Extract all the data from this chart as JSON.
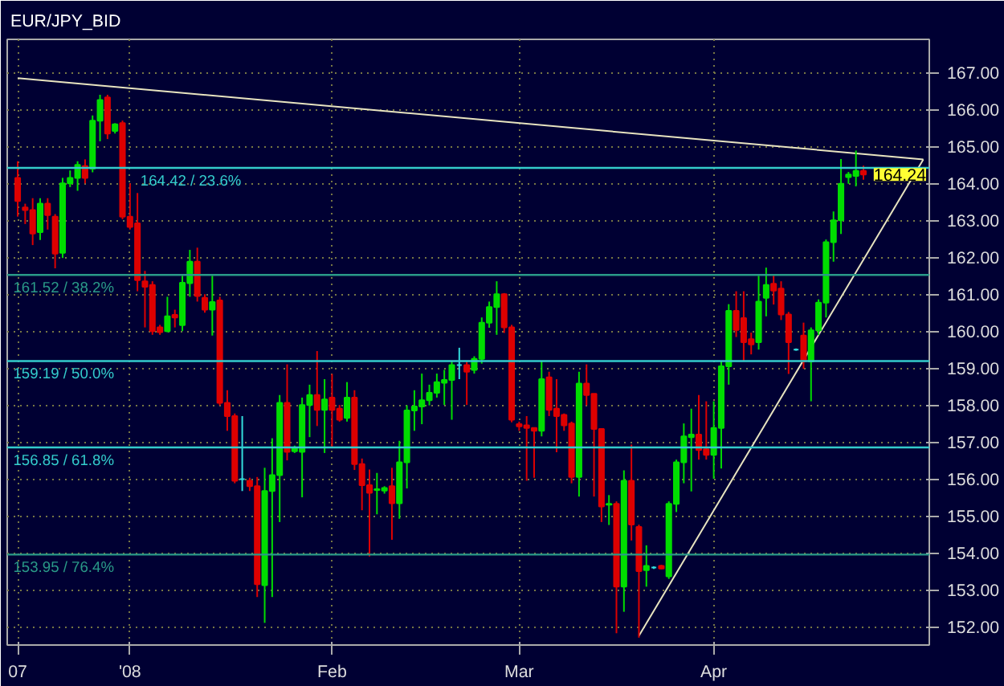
{
  "chart_data": {
    "type": "candlestick",
    "title": "EUR/JPY_BID",
    "categories": [
      "07",
      null,
      null,
      null,
      null,
      null,
      null,
      null,
      null,
      null,
      null,
      null,
      null,
      null,
      null,
      "'08",
      null,
      null,
      null,
      null,
      null,
      null,
      null,
      null,
      null,
      null,
      null,
      null,
      null,
      null,
      null,
      null,
      null,
      null,
      null,
      null,
      null,
      null,
      null,
      null,
      null,
      null,
      "Feb",
      null,
      null,
      null,
      null,
      null,
      null,
      null,
      null,
      null,
      null,
      null,
      null,
      null,
      null,
      null,
      null,
      null,
      null,
      null,
      null,
      null,
      null,
      null,
      null,
      "Mar",
      null,
      null,
      null,
      null,
      null,
      null,
      null,
      null,
      null,
      null,
      null,
      null,
      null,
      null,
      null,
      null,
      null,
      null,
      null,
      null,
      null,
      null,
      null,
      null,
      null,
      "Apr",
      null,
      null,
      null,
      null,
      null,
      null,
      null,
      null,
      null,
      null,
      null,
      null,
      null,
      null,
      null,
      null,
      null,
      null,
      null,
      null,
      null,
      null,
      null,
      null,
      null,
      null,
      null,
      null
    ],
    "ohlc": [
      [
        164.15,
        164.6,
        163.1,
        163.52
      ],
      [
        163.35,
        163.45,
        162.9,
        163.28
      ],
      [
        163.28,
        163.6,
        162.33,
        162.64
      ],
      [
        162.68,
        163.6,
        162.47,
        163.45
      ],
      [
        163.45,
        163.6,
        162.75,
        163.14
      ],
      [
        163.1,
        163.17,
        161.7,
        162.1
      ],
      [
        162.12,
        164.15,
        161.98,
        164.0
      ],
      [
        164.0,
        164.35,
        163.9,
        164.15
      ],
      [
        164.15,
        164.6,
        163.8,
        164.5
      ],
      [
        164.47,
        164.65,
        164.0,
        164.15
      ],
      [
        164.4,
        165.84,
        164.3,
        165.7
      ],
      [
        165.7,
        166.4,
        165.14,
        166.26
      ],
      [
        166.33,
        166.4,
        165.2,
        165.35
      ],
      [
        165.42,
        165.63,
        165.35,
        165.6
      ],
      [
        165.63,
        165.7,
        163.03,
        163.1
      ],
      [
        163.1,
        164.0,
        162.75,
        162.82
      ],
      [
        162.92,
        163.74,
        161.08,
        161.38
      ],
      [
        161.35,
        161.63,
        160.1,
        161.2
      ],
      [
        161.25,
        161.35,
        159.9,
        160.0
      ],
      [
        160.1,
        160.17,
        159.9,
        159.97
      ],
      [
        160.0,
        160.93,
        159.97,
        160.4
      ],
      [
        160.44,
        160.58,
        160.1,
        160.37
      ],
      [
        160.16,
        161.5,
        160.0,
        161.31
      ],
      [
        161.3,
        162.2,
        160.93,
        161.88
      ],
      [
        161.88,
        162.26,
        160.8,
        160.95
      ],
      [
        160.9,
        161.0,
        160.5,
        160.58
      ],
      [
        160.58,
        161.5,
        159.88,
        160.79
      ],
      [
        160.83,
        160.93,
        157.99,
        158.06
      ],
      [
        158.06,
        158.4,
        157.3,
        157.7
      ],
      [
        157.7,
        157.77,
        155.88,
        155.95
      ],
      [
        155.99,
        157.7,
        155.67,
        155.99
      ],
      [
        155.95,
        156.03,
        155.67,
        155.8
      ],
      [
        155.8,
        156.05,
        152.8,
        153.15
      ],
      [
        153.12,
        156.3,
        152.1,
        155.67
      ],
      [
        155.67,
        157.1,
        152.8,
        156.1
      ],
      [
        156.1,
        158.27,
        154.83,
        158.06
      ],
      [
        158.06,
        159.1,
        156.5,
        156.73
      ],
      [
        156.75,
        156.9,
        156.7,
        156.85
      ],
      [
        156.73,
        158.2,
        155.5,
        158.0
      ],
      [
        158.0,
        158.55,
        157.13,
        158.27
      ],
      [
        158.27,
        159.46,
        157.43,
        157.87
      ],
      [
        157.87,
        158.7,
        156.7,
        158.15
      ],
      [
        158.2,
        158.84,
        156.85,
        157.87
      ],
      [
        157.9,
        158.0,
        157.55,
        157.6
      ],
      [
        157.65,
        158.62,
        157.55,
        158.2
      ],
      [
        158.2,
        158.4,
        156.24,
        156.4
      ],
      [
        156.4,
        156.55,
        155.15,
        155.83
      ],
      [
        155.83,
        156.25,
        153.9,
        155.62
      ],
      [
        155.7,
        156.16,
        155.04,
        155.72
      ],
      [
        155.68,
        155.8,
        155.6,
        155.75
      ],
      [
        155.8,
        156.3,
        154.35,
        155.34
      ],
      [
        155.34,
        157.03,
        154.92,
        156.45
      ],
      [
        156.45,
        157.99,
        155.74,
        157.85
      ],
      [
        157.85,
        158.4,
        157.3,
        157.96
      ],
      [
        157.96,
        158.85,
        157.48,
        158.13
      ],
      [
        158.13,
        158.55,
        157.99,
        158.33
      ],
      [
        158.33,
        158.85,
        158.2,
        158.62
      ],
      [
        158.6,
        158.95,
        158.0,
        158.68
      ],
      [
        158.68,
        159.18,
        157.6,
        159.08
      ],
      [
        159.08,
        159.55,
        158.7,
        159.08
      ],
      [
        159.08,
        159.18,
        158.0,
        158.9
      ],
      [
        158.95,
        159.32,
        158.85,
        159.25
      ],
      [
        159.25,
        160.37,
        159.12,
        160.23
      ],
      [
        160.23,
        160.8,
        160.09,
        160.65
      ],
      [
        160.65,
        161.35,
        159.9,
        161.0
      ],
      [
        161.0,
        161.03,
        159.95,
        160.1
      ],
      [
        160.1,
        160.17,
        157.53,
        157.6
      ],
      [
        157.48,
        157.55,
        157.3,
        157.42
      ],
      [
        157.45,
        157.7,
        155.95,
        157.38
      ],
      [
        157.38,
        157.38,
        156.03,
        157.3
      ],
      [
        157.3,
        159.2,
        157.15,
        158.7
      ],
      [
        158.75,
        158.9,
        157.7,
        157.87
      ],
      [
        157.9,
        158.7,
        156.72,
        157.7
      ],
      [
        157.73,
        157.77,
        157.3,
        157.45
      ],
      [
        157.5,
        157.55,
        155.88,
        156.05
      ],
      [
        156.05,
        158.9,
        155.52,
        158.58
      ],
      [
        158.58,
        159.1,
        157.99,
        158.27
      ],
      [
        158.3,
        158.3,
        155.52,
        157.35
      ],
      [
        157.35,
        157.35,
        154.83,
        155.25
      ],
      [
        155.3,
        155.56,
        154.75,
        155.32
      ],
      [
        155.32,
        155.39,
        151.82,
        153.08
      ],
      [
        153.08,
        156.23,
        152.4,
        155.95
      ],
      [
        155.95,
        156.93,
        154.33,
        154.76
      ],
      [
        154.7,
        154.76,
        151.7,
        153.5
      ],
      [
        153.53,
        154.2,
        153.08,
        153.64
      ],
      [
        153.6,
        153.63,
        153.56,
        153.6
      ],
      [
        153.64,
        153.67,
        153.55,
        153.57
      ],
      [
        153.36,
        155.39,
        153.29,
        155.32
      ],
      [
        155.32,
        156.52,
        155.1,
        156.45
      ],
      [
        156.45,
        157.5,
        155.88,
        157.15
      ],
      [
        157.13,
        157.9,
        155.66,
        157.2
      ],
      [
        157.2,
        158.27,
        156.52,
        156.78
      ],
      [
        156.8,
        158.1,
        156.52,
        156.65
      ],
      [
        156.65,
        158.1,
        156.0,
        157.38
      ],
      [
        157.38,
        159.18,
        156.28,
        159.05
      ],
      [
        159.05,
        160.73,
        158.55,
        160.55
      ],
      [
        160.55,
        161.08,
        159.84,
        160.03
      ],
      [
        160.35,
        161.08,
        159.2,
        159.7
      ],
      [
        159.78,
        159.96,
        159.37,
        159.64
      ],
      [
        159.7,
        161.5,
        159.5,
        160.8
      ],
      [
        160.9,
        161.72,
        160.4,
        161.25
      ],
      [
        161.28,
        161.5,
        160.72,
        161.1
      ],
      [
        161.15,
        161.35,
        160.3,
        160.45
      ],
      [
        160.45,
        160.52,
        158.84,
        159.7
      ],
      [
        159.5,
        159.53,
        159.47,
        159.5
      ],
      [
        159.88,
        160.23,
        158.98,
        159.18
      ],
      [
        159.18,
        160.1,
        158.1,
        160.02
      ],
      [
        160.02,
        160.86,
        159.89,
        160.77
      ],
      [
        160.77,
        162.48,
        160.37,
        162.41
      ],
      [
        162.41,
        163.24,
        161.88,
        163.0
      ],
      [
        163.0,
        164.66,
        162.63,
        163.99
      ],
      [
        164.17,
        164.31,
        163.99,
        164.24
      ],
      [
        164.2,
        164.89,
        163.92,
        164.34
      ],
      [
        164.34,
        164.48,
        164.1,
        164.24
      ],
      null,
      null,
      null,
      null,
      null,
      null,
      null,
      null
    ],
    "colors": [
      "#dd0000",
      "#dd0000",
      "#dd0000",
      "#00dd00",
      "#dd0000",
      "#dd0000",
      "#00dd00",
      "#00dd00",
      "#00dd00",
      "#dd0000",
      "#00dd00",
      "#00dd00",
      "#dd0000",
      "#00dd00",
      "#dd0000",
      "#dd0000",
      "#dd0000",
      "#dd0000",
      "#dd0000",
      "#dd0000",
      "#00dd00",
      "#dd0000",
      "#00dd00",
      "#00dd00",
      "#dd0000",
      "#dd0000",
      "#00dd00",
      "#dd0000",
      "#dd0000",
      "#dd0000",
      "#33dddd",
      "#dd0000",
      "#dd0000",
      "#00dd00",
      "#00dd00",
      "#00dd00",
      "#dd0000",
      "#00dd00",
      "#00dd00",
      "#00dd00",
      "#dd0000",
      "#00dd00",
      "#dd0000",
      "#dd0000",
      "#00dd00",
      "#dd0000",
      "#dd0000",
      "#dd0000",
      "#00dd00",
      "#00dd00",
      "#dd0000",
      "#00dd00",
      "#00dd00",
      "#00dd00",
      "#00dd00",
      "#00dd00",
      "#00dd00",
      "#00dd00",
      "#00dd00",
      "#33dddd",
      "#dd0000",
      "#00dd00",
      "#00dd00",
      "#00dd00",
      "#00dd00",
      "#dd0000",
      "#dd0000",
      "#dd0000",
      "#dd0000",
      "#dd0000",
      "#00dd00",
      "#dd0000",
      "#dd0000",
      "#dd0000",
      "#dd0000",
      "#00dd00",
      "#dd0000",
      "#dd0000",
      "#dd0000",
      "#00dd00",
      "#dd0000",
      "#00dd00",
      "#dd0000",
      "#dd0000",
      "#00dd00",
      "#33dddd",
      "#dd0000",
      "#00dd00",
      "#00dd00",
      "#00dd00",
      "#00dd00",
      "#dd0000",
      "#dd0000",
      "#00dd00",
      "#00dd00",
      "#00dd00",
      "#dd0000",
      "#dd0000",
      "#dd0000",
      "#00dd00",
      "#00dd00",
      "#dd0000",
      "#dd0000",
      "#dd0000",
      "#33dddd",
      "#dd0000",
      "#00dd00",
      "#00dd00",
      "#00dd00",
      "#00dd00",
      "#00dd00",
      "#00dd00",
      "#00dd00",
      "#dd0000",
      null,
      null,
      null,
      null,
      null,
      null,
      null,
      null
    ],
    "series": [
      {
        "type": "line",
        "color": "#e8e4c0",
        "values": [
          166.85,
          null,
          null,
          null,
          null,
          null,
          null,
          null,
          null,
          null,
          null,
          null,
          null,
          null,
          null,
          null,
          null,
          null,
          null,
          null,
          null,
          null,
          null,
          null,
          null,
          null,
          null,
          null,
          null,
          null,
          null,
          null,
          null,
          null,
          null,
          null,
          null,
          null,
          null,
          null,
          null,
          null,
          null,
          null,
          null,
          null,
          null,
          null,
          null,
          null,
          null,
          null,
          null,
          null,
          null,
          null,
          null,
          null,
          null,
          null,
          null,
          null,
          null,
          null,
          null,
          null,
          null,
          null,
          null,
          null,
          null,
          null,
          null,
          null,
          null,
          null,
          null,
          null,
          null,
          null,
          null,
          null,
          null,
          null,
          null,
          null,
          null,
          null,
          null,
          null,
          null,
          null,
          null,
          null,
          null,
          null,
          null,
          null,
          null,
          null,
          null,
          null,
          null,
          null,
          null,
          null,
          null,
          null,
          null,
          null,
          null,
          null,
          null,
          null,
          null,
          null,
          null,
          null,
          null,
          null,
          null,
          164.65
        ]
      },
      {
        "type": "line",
        "color": "#e8e4c0",
        "values": [
          null,
          null,
          null,
          null,
          null,
          null,
          null,
          null,
          null,
          null,
          null,
          null,
          null,
          null,
          null,
          null,
          null,
          null,
          null,
          null,
          null,
          null,
          null,
          null,
          null,
          null,
          null,
          null,
          null,
          null,
          null,
          null,
          null,
          null,
          null,
          null,
          null,
          null,
          null,
          null,
          null,
          null,
          null,
          null,
          null,
          null,
          null,
          null,
          null,
          null,
          null,
          null,
          null,
          null,
          null,
          null,
          null,
          null,
          null,
          null,
          null,
          null,
          null,
          null,
          null,
          null,
          null,
          null,
          null,
          null,
          null,
          null,
          null,
          null,
          null,
          null,
          null,
          null,
          null,
          null,
          null,
          null,
          null,
          151.75,
          null,
          null,
          null,
          null,
          null,
          null,
          null,
          null,
          null,
          null,
          null,
          null,
          null,
          null,
          null,
          null,
          null,
          null,
          null,
          null,
          null,
          null,
          null,
          null,
          null,
          null,
          null,
          null,
          null,
          null,
          null,
          null,
          null,
          null,
          null,
          null,
          null,
          164.65
        ]
      }
    ],
    "ylim": [
      151.5,
      167.9
    ],
    "yticks": [
      {
        "value": 152,
        "label": "152.00"
      },
      {
        "value": 153,
        "label": "153.00"
      },
      {
        "value": 154,
        "label": "154.00"
      },
      {
        "value": 155,
        "label": "155.00"
      },
      {
        "value": 156,
        "label": "156.00"
      },
      {
        "value": 157,
        "label": "157.00"
      },
      {
        "value": 158,
        "label": "158.00"
      },
      {
        "value": 159,
        "label": "159.00"
      },
      {
        "value": 160,
        "label": "160.00"
      },
      {
        "value": 161,
        "label": "161.00"
      },
      {
        "value": 162,
        "label": "162.00"
      },
      {
        "value": 163,
        "label": "163.00"
      },
      {
        "value": 164,
        "label": "164.00"
      },
      {
        "value": 165,
        "label": "165.00"
      },
      {
        "value": 166,
        "label": "166.00"
      },
      {
        "value": 167,
        "label": "167.00"
      }
    ],
    "grid": true,
    "ref_lines": [
      {
        "axis": "y",
        "value": 164.42,
        "label": "164.42 / 23.6%",
        "color": "#33cccc"
      },
      {
        "axis": "y",
        "value": 161.52,
        "label": "161.52 / 38.2%",
        "color": "#2a9a88"
      },
      {
        "axis": "y",
        "value": 159.19,
        "label": "159.19 / 50.0%",
        "color": "#33cccc"
      },
      {
        "axis": "y",
        "value": 156.85,
        "label": "156.85 / 61.8%",
        "color": "#33cccc"
      },
      {
        "axis": "y",
        "value": 153.95,
        "label": "153.95 / 76.4%",
        "color": "#2a9a88"
      }
    ],
    "annotations": [
      {
        "text": "164.24",
        "y": 164.24
      }
    ]
  }
}
